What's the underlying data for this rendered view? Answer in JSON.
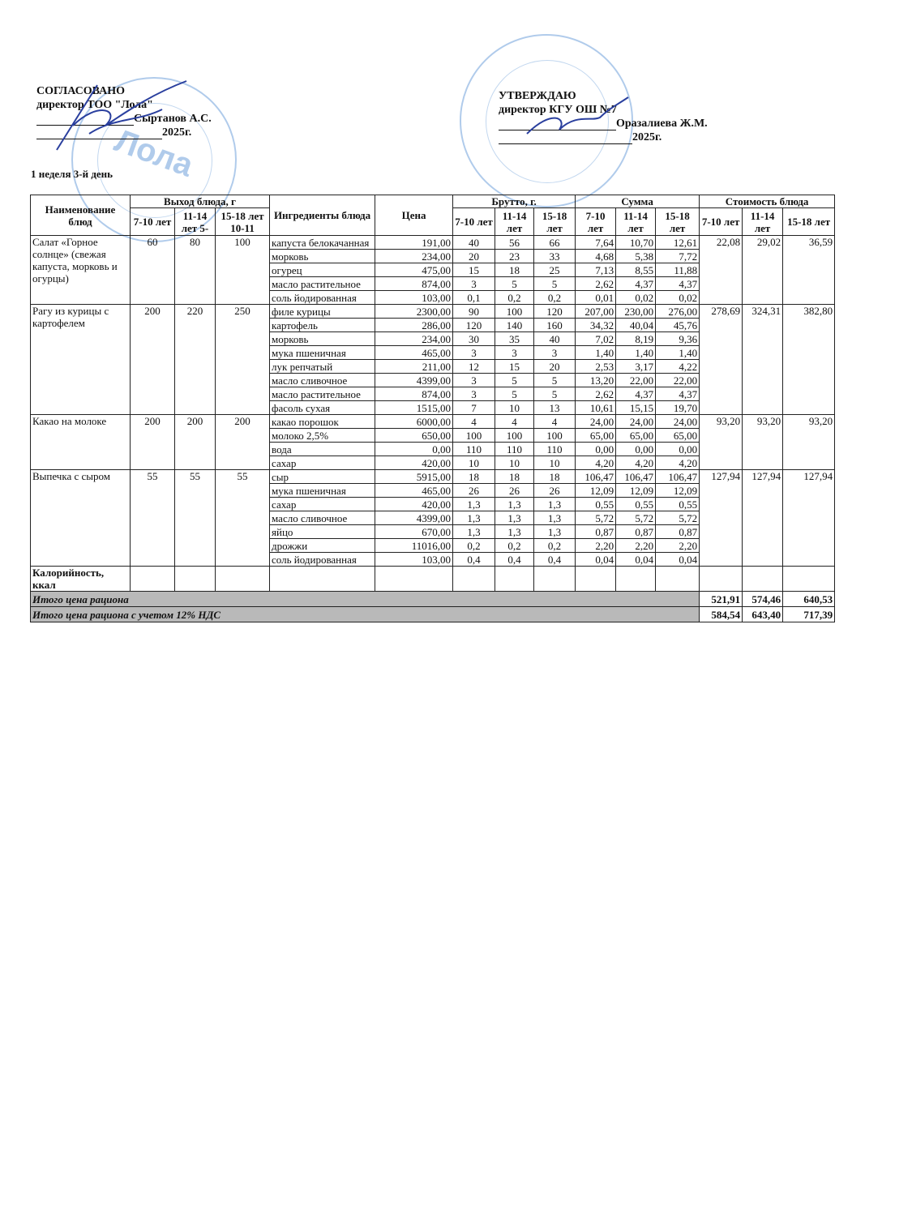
{
  "left_block": {
    "title": "СОГЛАСОВАНО",
    "position": "директор ТОО \"Лола\"",
    "name": "Сыртанов А.С.",
    "year": "2025г."
  },
  "right_block": {
    "title": "УТВЕРЖДАЮ",
    "position": "директор КГУ ОШ №7",
    "name": "Оразалиева Ж.М.",
    "year": "2025г."
  },
  "day_label": "1 неделя 3-й день",
  "stamp_left_text": "Лола",
  "header": {
    "dish": "Наименование блюд",
    "yield": "Выход блюда, г",
    "yield_ages": [
      "7-10 лет",
      "11-14 лет  5-",
      "15-18 лет 10-11"
    ],
    "ingredients": "Ингредиенты блюда",
    "price": "Цена",
    "brutto": "Брутто, г.",
    "sum": "Сумма",
    "cost": "Стоимость блюда",
    "ages": [
      "7-10 лет",
      "11-14 лет",
      "15-18 лет"
    ]
  },
  "dishes": [
    {
      "name": "Салат «Горное солнце» (свежая капуста, морковь и огурцы)",
      "yield": [
        "60",
        "80",
        "100"
      ],
      "cost": [
        "22,08",
        "29,02",
        "36,59"
      ],
      "ingredients": [
        [
          "капуста белокачанная",
          "191,00",
          "40",
          "56",
          "66",
          "7,64",
          "10,70",
          "12,61"
        ],
        [
          "морковь",
          "234,00",
          "20",
          "23",
          "33",
          "4,68",
          "5,38",
          "7,72"
        ],
        [
          "огурец",
          "475,00",
          "15",
          "18",
          "25",
          "7,13",
          "8,55",
          "11,88"
        ],
        [
          "масло растительное",
          "874,00",
          "3",
          "5",
          "5",
          "2,62",
          "4,37",
          "4,37"
        ],
        [
          "соль йодированная",
          "103,00",
          "0,1",
          "0,2",
          "0,2",
          "0,01",
          "0,02",
          "0,02"
        ]
      ]
    },
    {
      "name": "Рагу из курицы с картофелем",
      "yield": [
        "200",
        "220",
        "250"
      ],
      "cost": [
        "278,69",
        "324,31",
        "382,80"
      ],
      "ingredients": [
        [
          "филе курицы",
          "2300,00",
          "90",
          "100",
          "120",
          "207,00",
          "230,00",
          "276,00"
        ],
        [
          "картофель",
          "286,00",
          "120",
          "140",
          "160",
          "34,32",
          "40,04",
          "45,76"
        ],
        [
          "морковь",
          "234,00",
          "30",
          "35",
          "40",
          "7,02",
          "8,19",
          "9,36"
        ],
        [
          "мука пшеничная",
          "465,00",
          "3",
          "3",
          "3",
          "1,40",
          "1,40",
          "1,40"
        ],
        [
          "лук репчатый",
          "211,00",
          "12",
          "15",
          "20",
          "2,53",
          "3,17",
          "4,22"
        ],
        [
          "масло сливочное",
          "4399,00",
          "3",
          "5",
          "5",
          "13,20",
          "22,00",
          "22,00"
        ],
        [
          "масло растительное",
          "874,00",
          "3",
          "5",
          "5",
          "2,62",
          "4,37",
          "4,37"
        ],
        [
          "фасоль сухая",
          "1515,00",
          "7",
          "10",
          "13",
          "10,61",
          "15,15",
          "19,70"
        ]
      ]
    },
    {
      "name": "Какао на молоке",
      "yield": [
        "200",
        "200",
        "200"
      ],
      "cost": [
        "93,20",
        "93,20",
        "93,20"
      ],
      "ingredients": [
        [
          "какао порошок",
          "6000,00",
          "4",
          "4",
          "4",
          "24,00",
          "24,00",
          "24,00"
        ],
        [
          "молоко 2,5%",
          "650,00",
          "100",
          "100",
          "100",
          "65,00",
          "65,00",
          "65,00"
        ],
        [
          "вода",
          "0,00",
          "110",
          "110",
          "110",
          "0,00",
          "0,00",
          "0,00"
        ],
        [
          "сахар",
          "420,00",
          "10",
          "10",
          "10",
          "4,20",
          "4,20",
          "4,20"
        ]
      ]
    },
    {
      "name": "Выпечка с сыром",
      "yield": [
        "55",
        "55",
        "55"
      ],
      "cost": [
        "127,94",
        "127,94",
        "127,94"
      ],
      "ingredients": [
        [
          "сыр",
          "5915,00",
          "18",
          "18",
          "18",
          "106,47",
          "106,47",
          "106,47"
        ],
        [
          "мука пшеничная",
          "465,00",
          "26",
          "26",
          "26",
          "12,09",
          "12,09",
          "12,09"
        ],
        [
          "сахар",
          "420,00",
          "1,3",
          "1,3",
          "1,3",
          "0,55",
          "0,55",
          "0,55"
        ],
        [
          "масло сливочное",
          "4399,00",
          "1,3",
          "1,3",
          "1,3",
          "5,72",
          "5,72",
          "5,72"
        ],
        [
          "яйцо",
          "670,00",
          "1,3",
          "1,3",
          "1,3",
          "0,87",
          "0,87",
          "0,87"
        ],
        [
          "дрожжи",
          "11016,00",
          "0,2",
          "0,2",
          "0,2",
          "2,20",
          "2,20",
          "2,20"
        ],
        [
          "соль йодированная",
          "103,00",
          "0,4",
          "0,4",
          "0,4",
          "0,04",
          "0,04",
          "0,04"
        ]
      ]
    }
  ],
  "calories_label": "Калорийность, ккал",
  "totals": [
    {
      "label": "Итого цена рациона",
      "values": [
        "521,91",
        "574,46",
        "640,53"
      ]
    },
    {
      "label": "Итого цена рациона с учетом 12% НДС",
      "values": [
        "584,54",
        "643,40",
        "717,39"
      ]
    }
  ]
}
